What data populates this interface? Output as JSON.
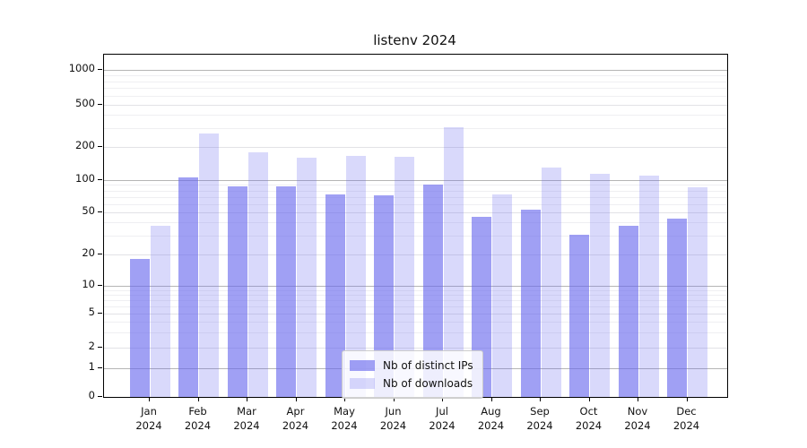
{
  "title": "listenv 2024",
  "colors": {
    "series_base": "#6666ee",
    "ips_alpha": 0.62,
    "downloads_alpha": 0.25,
    "bar_ips_rendered": "#a4a4f5",
    "bar_downloads_rendered": "#d9d9f9",
    "grid_major": "#b5b5b5",
    "grid_minor": "#efeff2",
    "axis": "#000000"
  },
  "y_axis": {
    "tick_values": [
      0,
      1,
      2,
      5,
      10,
      20,
      50,
      100,
      200,
      500,
      1000
    ],
    "tick_labels": [
      "0",
      "1",
      "2",
      "5",
      "10",
      "20",
      "50",
      "100",
      "200",
      "500",
      "1000"
    ]
  },
  "x_axis": {
    "months": [
      "Jan",
      "Feb",
      "Mar",
      "Apr",
      "May",
      "Jun",
      "Jul",
      "Aug",
      "Sep",
      "Oct",
      "Nov",
      "Dec"
    ],
    "year": "2024"
  },
  "legend": {
    "items": [
      {
        "label": "Nb of distinct IPs",
        "series": "ips"
      },
      {
        "label": "Nb of downloads",
        "series": "downloads"
      }
    ]
  },
  "chart_data": {
    "type": "bar",
    "title": "listenv 2024",
    "scale": "symlog",
    "ylim": [
      0,
      1500
    ],
    "grid": true,
    "legend_position": "lower center",
    "categories": [
      "Jan 2024",
      "Feb 2024",
      "Mar 2024",
      "Apr 2024",
      "May 2024",
      "Jun 2024",
      "Jul 2024",
      "Aug 2024",
      "Sep 2024",
      "Oct 2024",
      "Nov 2024",
      "Dec 2024"
    ],
    "series": [
      {
        "name": "Nb of distinct IPs",
        "values": [
          18,
          105,
          87,
          88,
          73,
          72,
          90,
          45,
          53,
          31,
          37,
          44
        ]
      },
      {
        "name": "Nb of downloads",
        "values": [
          37,
          270,
          180,
          160,
          165,
          163,
          310,
          74,
          130,
          114,
          110,
          85
        ]
      }
    ]
  }
}
